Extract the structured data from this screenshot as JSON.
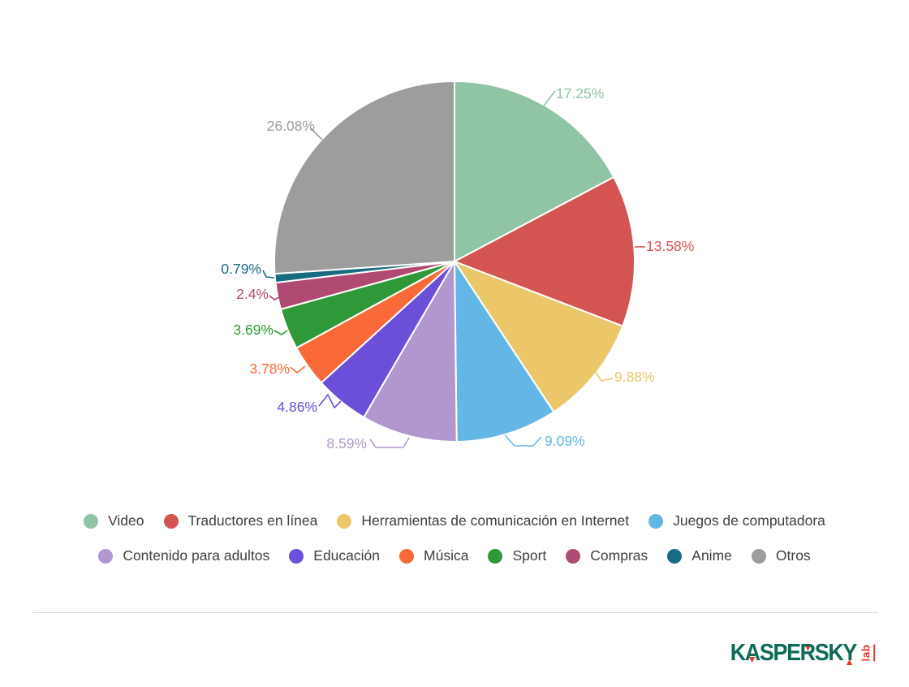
{
  "chart_data": {
    "type": "pie",
    "title": "",
    "legend_position": "bottom",
    "direction": "clockwise",
    "start_angle_deg": 0,
    "series": [
      {
        "label": "Video",
        "value": 17.25,
        "display": "17.25%",
        "color": "#8fc4a4"
      },
      {
        "label": "Traductores en línea",
        "value": 13.58,
        "display": "13.58%",
        "color": "#d45452"
      },
      {
        "label": "Herramientas de comunicación en Internet",
        "value": 9.88,
        "display": "9.88%",
        "color": "#ebc76a"
      },
      {
        "label": "Juegos de computadora",
        "value": 9.09,
        "display": "9.09%",
        "color": "#63b7e7"
      },
      {
        "label": "Contenido para adultos",
        "value": 8.59,
        "display": "8.59%",
        "color": "#b297cf"
      },
      {
        "label": "Educación",
        "value": 4.86,
        "display": "4.86%",
        "color": "#6b4fd9"
      },
      {
        "label": "Música",
        "value": 3.78,
        "display": "3.78%",
        "color": "#fa6a38"
      },
      {
        "label": "Sport",
        "value": 3.69,
        "display": "3.69%",
        "color": "#2f9838"
      },
      {
        "label": "Compras",
        "value": 2.4,
        "display": "2.4%",
        "color": "#b04a73"
      },
      {
        "label": "Anime",
        "value": 0.79,
        "display": "0.79%",
        "color": "#186b80"
      },
      {
        "label": "Otros",
        "value": 26.08,
        "display": "26.08%",
        "color": "#9d9d9d"
      }
    ]
  },
  "branding": {
    "text": "KASPERSKY",
    "sub": "lab",
    "green": "#0e6b57",
    "red": "#e23b2b"
  }
}
